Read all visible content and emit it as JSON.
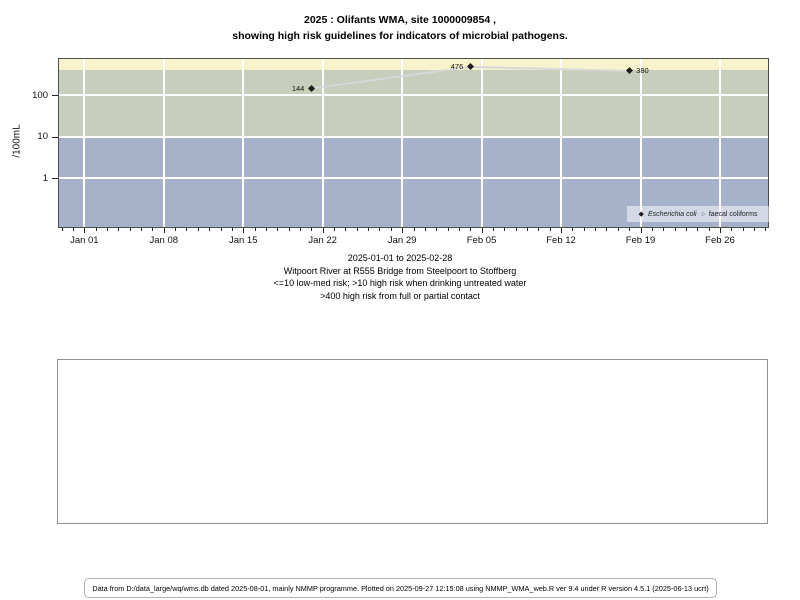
{
  "chart_data": {
    "type": "scatter",
    "title_lines": [
      "2025 : Olifants WMA, site 1000009854 ,",
      "showing high risk guidelines for indicators of microbial pathogens."
    ],
    "subtitle_lines": [
      "2025-01-01 to 2025-02-28",
      "Witpoort River at R555 Bridge from Steelpoort to Stoffberg",
      "<=10 low-med risk; >10 high risk when drinking untreated water",
      ">400 high risk from full or partial contact"
    ],
    "ylabel": "/100mL",
    "x_axis": {
      "date_range": [
        "2025-01-01",
        "2025-02-28"
      ],
      "tick_labels": [
        "Jan 01",
        "Jan 08",
        "Jan 15",
        "Jan 22",
        "Jan 29",
        "Feb 05",
        "Feb 12",
        "Feb 19",
        "Feb 26"
      ],
      "tick_days": [
        0,
        7,
        14,
        21,
        28,
        35,
        42,
        49,
        56
      ],
      "minor_tick_days_range": [
        -2,
        60
      ],
      "domain_days": [
        -2.32,
        60.32
      ]
    },
    "y_axis": {
      "scale": "log10",
      "tick_values": [
        1,
        10,
        100
      ],
      "domain_log10": [
        -1.205,
        2.892
      ],
      "unit": "/100mL"
    },
    "bands": [
      {
        "name": "above-400-high-risk-full-or-partial-contact",
        "lo": 400,
        "hi": "max",
        "color": "#f7f3cc"
      },
      {
        "name": "10-to-400-high-risk-drinking-untreated",
        "lo": 10,
        "hi": 400,
        "color": "#c7cebb"
      },
      {
        "name": "below-10-low-med-risk",
        "lo": "min",
        "hi": 10,
        "color": "#a6b2ca"
      }
    ],
    "grid_color": "#ffffff",
    "series": [
      {
        "name": "Escherichia coli",
        "marker": "filled-diamond",
        "marker_color": "#1f1f1f",
        "line_color": "#d8d8d8",
        "points": [
          {
            "date": "2025-01-21",
            "day": 20,
            "value": 144,
            "label": "144",
            "label_side": "left"
          },
          {
            "date": "2025-02-04",
            "day": 34,
            "value": 476,
            "label": "476",
            "label_side": "left"
          },
          {
            "date": "2025-02-18",
            "day": 48,
            "value": 380,
            "label": "380",
            "label_side": "right"
          }
        ]
      },
      {
        "name": "faecal coliforms",
        "marker": "open-circle",
        "marker_color": "#555555",
        "points": []
      }
    ],
    "legend": {
      "position": "bottom-right",
      "entries": [
        {
          "marker": "◆",
          "label": "Escherichia coli",
          "italic": true
        },
        {
          "marker": "○",
          "label": "faecal coliforms",
          "italic": false
        }
      ]
    }
  },
  "footer": {
    "text": "Data from D:/data_large/wq/wms.db dated 2025-08-01, mainly NMMP programme. Plotted on 2025-09-27 12:15:08 using NMMP_WMA_web.R ver 9.4 under R version 4.5.1 (2025-06-13 ucrt)"
  }
}
